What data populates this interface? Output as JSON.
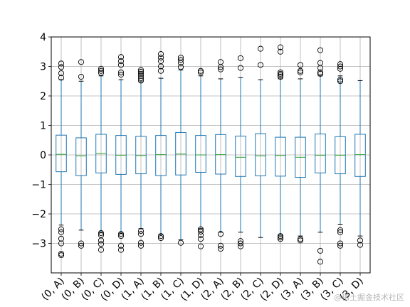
{
  "chart_data": {
    "type": "box",
    "title": "",
    "xlabel": "",
    "ylabel": "",
    "ylim": [
      -4,
      4
    ],
    "y_ticks": [
      -3,
      -2,
      -1,
      0,
      1,
      2,
      3,
      4
    ],
    "grid": true,
    "box_color": "#1f77b4",
    "median_color": "#2ca02c",
    "categories": [
      "(0, A)",
      "(0, B)",
      "(0, C)",
      "(0, D)",
      "(1, A)",
      "(1, B)",
      "(1, C)",
      "(1, D)",
      "(2, A)",
      "(2, B)",
      "(2, C)",
      "(2, D)",
      "(3, A)",
      "(3, B)",
      "(3, C)",
      "(3, D)"
    ],
    "boxes": [
      {
        "q1": -0.57,
        "median": 0.02,
        "q3": 0.67,
        "whisker_low": -2.38,
        "whisker_high": 2.55,
        "outliers": [
          3.1,
          2.98,
          2.77,
          2.62,
          -2.52,
          -2.62,
          -2.84,
          -3.0,
          -3.35,
          -3.4
        ]
      },
      {
        "q1": -0.7,
        "median": -0.03,
        "q3": 0.58,
        "whisker_low": -2.55,
        "whisker_high": 2.5,
        "outliers": [
          3.15,
          2.65,
          -3.0,
          -3.08
        ]
      },
      {
        "q1": -0.61,
        "median": 0.05,
        "q3": 0.7,
        "whisker_low": -2.62,
        "whisker_high": 2.68,
        "outliers": [
          2.92,
          2.85,
          2.78,
          -2.65,
          -2.72,
          -2.9,
          -3.02,
          -3.22
        ]
      },
      {
        "q1": -0.66,
        "median": -0.01,
        "q3": 0.66,
        "whisker_low": -2.65,
        "whisker_high": 2.55,
        "outliers": [
          3.32,
          3.18,
          3.05,
          2.8,
          2.72,
          -2.68,
          -2.75,
          -3.08,
          -3.22
        ]
      },
      {
        "q1": -0.64,
        "median": -0.02,
        "q3": 0.63,
        "whisker_low": -2.5,
        "whisker_high": 2.48,
        "outliers": [
          2.88,
          2.82,
          2.75,
          2.68,
          2.6,
          2.52,
          -2.58,
          -2.68,
          -2.98,
          -3.08
        ]
      },
      {
        "q1": -0.7,
        "median": 0.01,
        "q3": 0.66,
        "whisker_low": -2.7,
        "whisker_high": 2.6,
        "outliers": [
          3.42,
          3.3,
          3.18,
          3.0,
          2.85,
          -2.75,
          -2.82
        ]
      },
      {
        "q1": -0.68,
        "median": 0.03,
        "q3": 0.76,
        "whisker_low": -2.88,
        "whisker_high": 2.88,
        "outliers": [
          3.3,
          3.22,
          3.12,
          2.98,
          -2.98
        ]
      },
      {
        "q1": -0.59,
        "median": 0.0,
        "q3": 0.66,
        "whisker_low": -2.5,
        "whisker_high": 2.68,
        "outliers": [
          2.85,
          2.8,
          -2.52,
          -2.6,
          -2.72,
          -2.85,
          -3.1
        ]
      },
      {
        "q1": -0.65,
        "median": 0.01,
        "q3": 0.69,
        "whisker_low": -2.62,
        "whisker_high": 2.58,
        "outliers": [
          3.15,
          2.98,
          2.9,
          -2.68,
          -3.08,
          -3.18
        ]
      },
      {
        "q1": -0.73,
        "median": -0.08,
        "q3": 0.64,
        "whisker_low": -2.62,
        "whisker_high": 2.62,
        "outliers": [
          3.28,
          2.95,
          -2.92,
          -3.0,
          -3.1
        ]
      },
      {
        "q1": -0.71,
        "median": -0.03,
        "q3": 0.72,
        "whisker_low": -2.8,
        "whisker_high": 2.55,
        "outliers": [
          3.6,
          3.05
        ]
      },
      {
        "q1": -0.72,
        "median": -0.02,
        "q3": 0.6,
        "whisker_low": -2.72,
        "whisker_high": 2.58,
        "outliers": [
          3.65,
          3.5,
          2.8,
          2.75,
          2.7,
          2.65,
          -2.75,
          -2.8,
          -2.85
        ]
      },
      {
        "q1": -0.76,
        "median": -0.08,
        "q3": 0.6,
        "whisker_low": -2.75,
        "whisker_high": 2.58,
        "outliers": [
          3.05,
          2.85,
          2.8,
          -2.85,
          -2.9
        ]
      },
      {
        "q1": -0.61,
        "median": -0.01,
        "q3": 0.71,
        "whisker_low": -2.62,
        "whisker_high": 2.68,
        "outliers": [
          3.55,
          3.12,
          2.95,
          2.8,
          2.75,
          -3.25,
          -3.62
        ]
      },
      {
        "q1": -0.64,
        "median": -0.01,
        "q3": 0.62,
        "whisker_low": -2.35,
        "whisker_high": 2.68,
        "outliers": [
          3.08,
          3.0,
          2.92,
          2.55,
          2.5,
          -2.55,
          -2.62,
          -3.0,
          -3.08
        ]
      },
      {
        "q1": -0.73,
        "median": 0.01,
        "q3": 0.7,
        "whisker_low": -2.75,
        "whisker_high": 2.52,
        "outliers": [
          -2.9,
          -3.05
        ]
      }
    ]
  },
  "watermark": "@稀土掘金技术社区"
}
